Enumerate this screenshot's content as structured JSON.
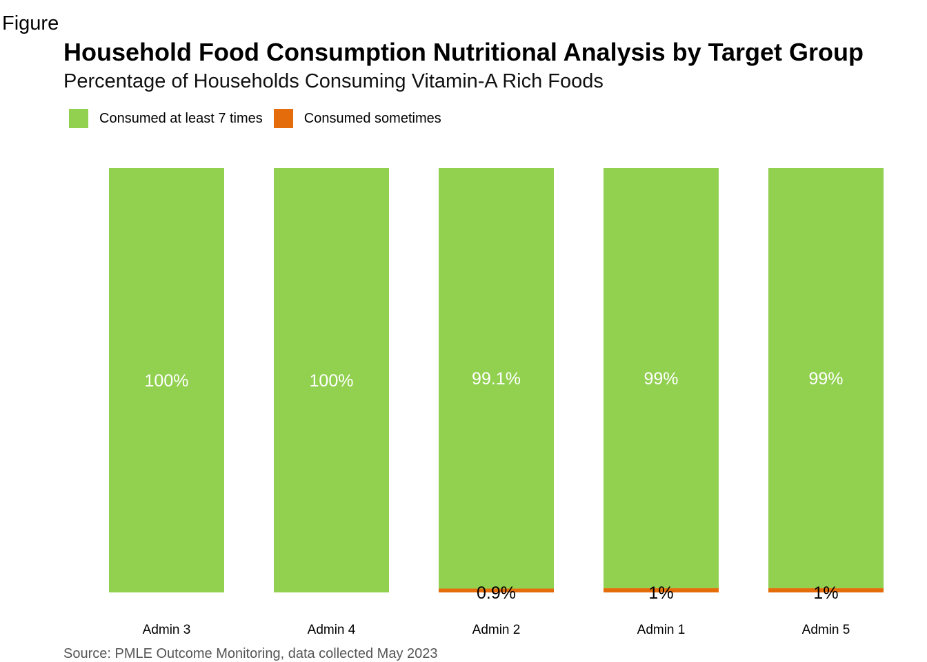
{
  "figure_label": "Figure",
  "source": "Source: PMLE Outcome Monitoring, data collected May 2023",
  "colors": {
    "series_0": "#92d050",
    "series_1": "#e46c0a"
  },
  "chart_data": {
    "type": "bar",
    "stacked": true,
    "title": "Household Food Consumption Nutritional Analysis by Target Group",
    "subtitle": "Percentage of Households Consuming Vitamin-A Rich Foods",
    "xlabel": "",
    "ylabel": "",
    "ylim": [
      0,
      100
    ],
    "grid": false,
    "legend": "top-left",
    "categories": [
      "Admin 3",
      "Admin 4",
      "Admin 2",
      "Admin 1",
      "Admin 5"
    ],
    "series": [
      {
        "name": "Consumed at least 7 times",
        "values": [
          100,
          100,
          99.1,
          99,
          99
        ],
        "labels": [
          "100%",
          "100%",
          "99.1%",
          "99%",
          "99%"
        ]
      },
      {
        "name": "Consumed sometimes",
        "values": [
          0,
          0,
          0.9,
          1,
          1
        ],
        "labels": [
          "",
          "",
          "0.9%",
          "1%",
          "1%"
        ]
      }
    ]
  }
}
